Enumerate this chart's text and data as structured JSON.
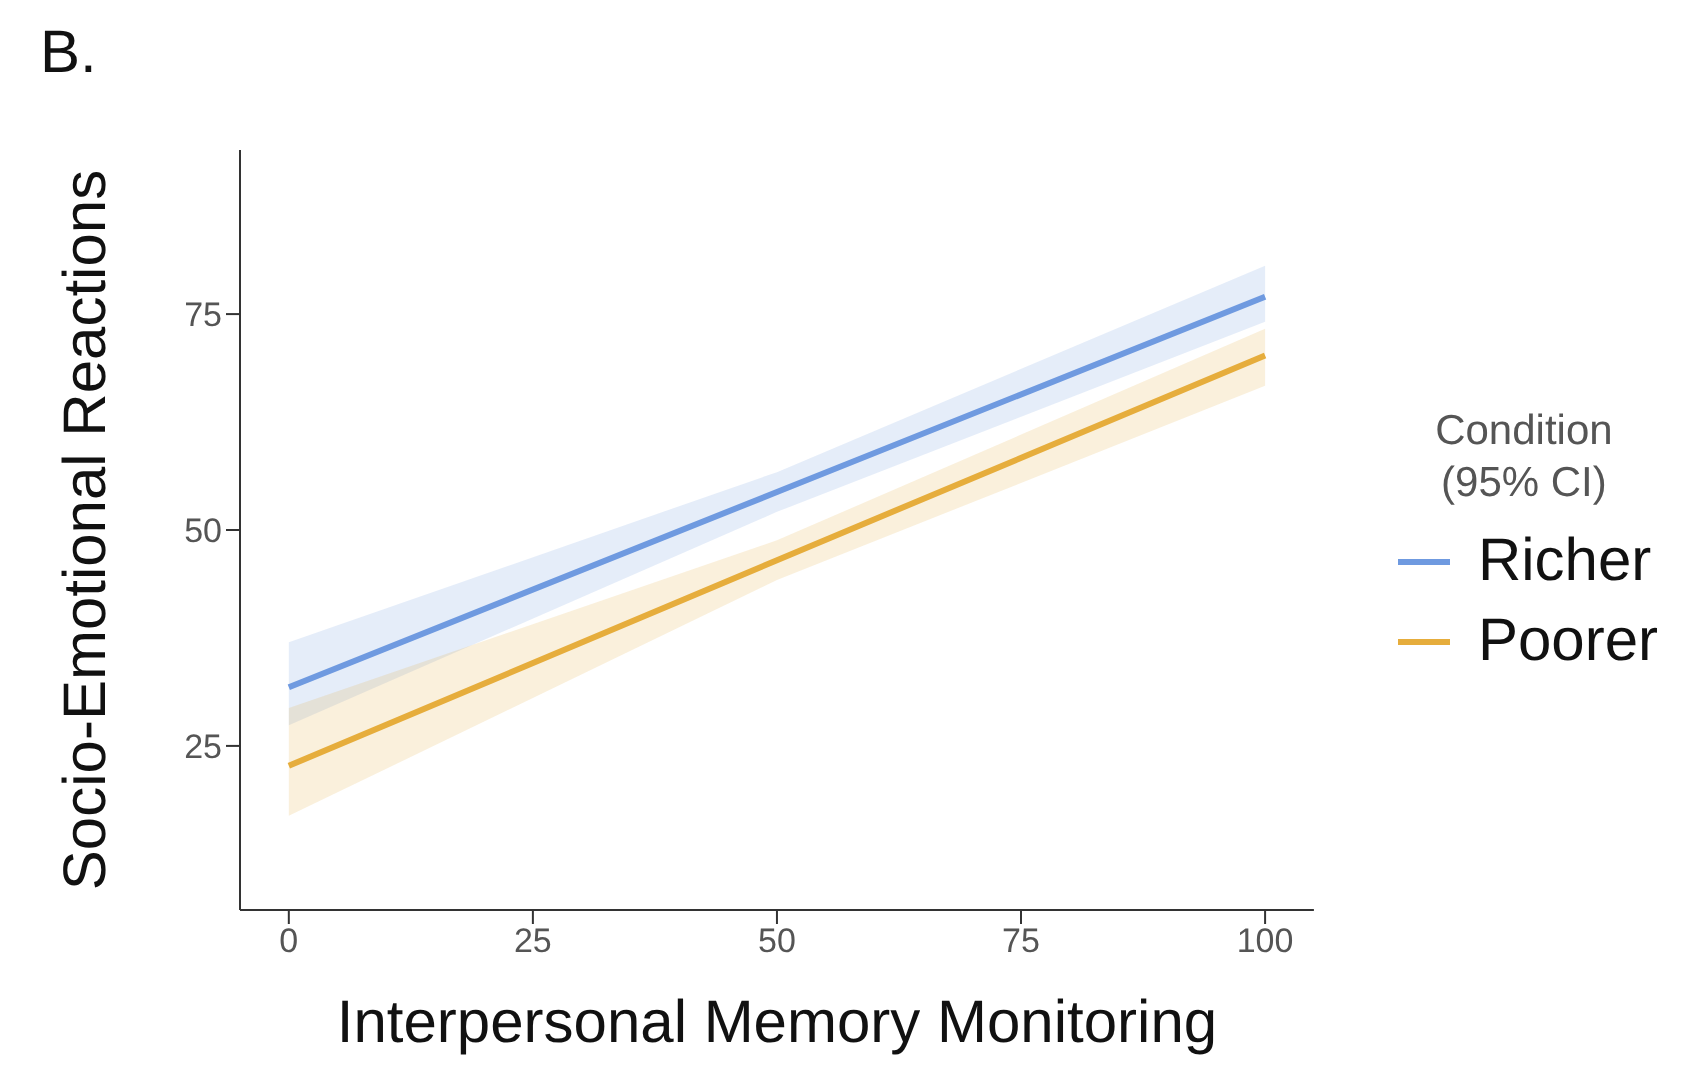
{
  "chart_data": {
    "type": "line",
    "title": "B.",
    "xlabel": "Interpersonal Memory Monitoring",
    "ylabel": "Socio-Emotional Reactions",
    "legend_title": "Condition (95% CI)",
    "x": [
      0,
      50,
      100
    ],
    "series": [
      {
        "name": "Richer",
        "color": "#6f9ae0",
        "values": [
          31.8,
          54.4,
          77.0
        ],
        "lower": [
          27.4,
          52.1,
          74.1
        ],
        "upper": [
          37.0,
          56.7,
          80.6
        ]
      },
      {
        "name": "Poorer",
        "color": "#e6ad3c",
        "values": [
          22.7,
          46.5,
          70.2
        ],
        "lower": [
          16.9,
          44.2,
          66.7
        ],
        "upper": [
          29.4,
          48.8,
          73.3
        ]
      }
    ],
    "xlim": [
      -5,
      105
    ],
    "xticks": [
      0,
      25,
      50,
      75,
      100
    ],
    "ylim": [
      6,
      94
    ],
    "yticks": [
      25,
      50,
      75
    ],
    "grid": false,
    "legend": "right",
    "marker": "none",
    "line_style": "solid"
  }
}
